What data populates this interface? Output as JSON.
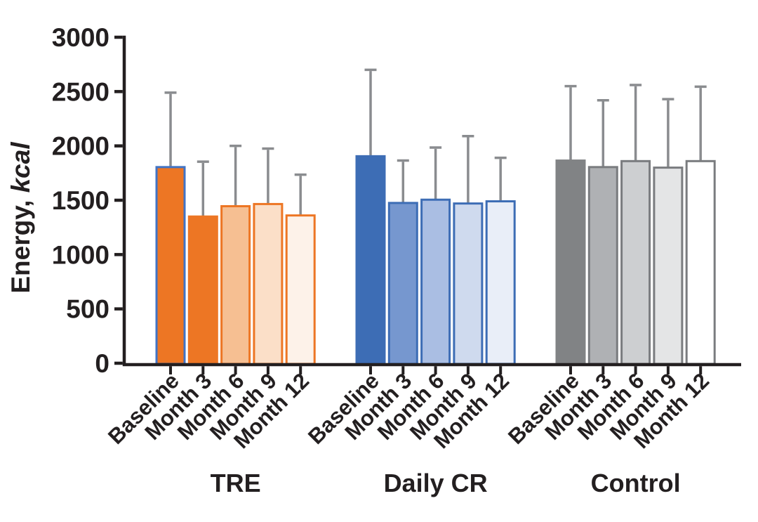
{
  "figure": {
    "ylabel_prefix": "Energy,",
    "ylabel_unit": "kcal"
  },
  "chart_data": {
    "type": "bar",
    "title": "",
    "xlabel": "",
    "ylabel": "Energy, kcal",
    "ylabel_unit_italic": "kcal",
    "ylim": [
      0,
      3000
    ],
    "yticks": [
      0,
      500,
      1000,
      1500,
      2000,
      2500,
      3000
    ],
    "grid": false,
    "legend": "none",
    "error_bars": "upper-sd-whisker-with-cap",
    "categories": [
      "Baseline",
      "Month 3",
      "Month 6",
      "Month 9",
      "Month 12"
    ],
    "groups": [
      {
        "name": "TRE",
        "values": [
          1805,
          1350,
          1445,
          1465,
          1360
        ],
        "error_top": [
          2490,
          1855,
          2000,
          1975,
          1735
        ],
        "bar_fills": [
          "#ED7624",
          "#ED7624",
          "#F6BF92",
          "#FBDFC8",
          "#FDF2E9"
        ],
        "bar_strokes": [
          "#4173C4",
          "#ED7624",
          "#ED7624",
          "#ED7624",
          "#ED7624"
        ]
      },
      {
        "name": "Daily CR",
        "values": [
          1905,
          1475,
          1505,
          1470,
          1490
        ],
        "error_top": [
          2700,
          1865,
          1985,
          2090,
          1890
        ],
        "bar_fills": [
          "#3D6DB5",
          "#7697CF",
          "#AABEE3",
          "#CFDAEE",
          "#E9EEF8"
        ],
        "bar_strokes": [
          "#3D6DB5",
          "#3D6DB5",
          "#3D6DB5",
          "#3D6DB5",
          "#3D6DB5"
        ]
      },
      {
        "name": "Control",
        "values": [
          1865,
          1805,
          1860,
          1800,
          1860
        ],
        "error_top": [
          2550,
          2420,
          2560,
          2430,
          2545
        ],
        "bar_fills": [
          "#818385",
          "#AFB1B4",
          "#CDCFD1",
          "#E4E5E6",
          "#FFFFFF"
        ],
        "bar_strokes": [
          "#818385",
          "#7A7C7F",
          "#7A7C7F",
          "#7A7C7F",
          "#7A7C7F"
        ]
      }
    ],
    "colors": {
      "axis": "#231F20",
      "text": "#231F20",
      "error_bar": "#8A8C8F"
    }
  }
}
